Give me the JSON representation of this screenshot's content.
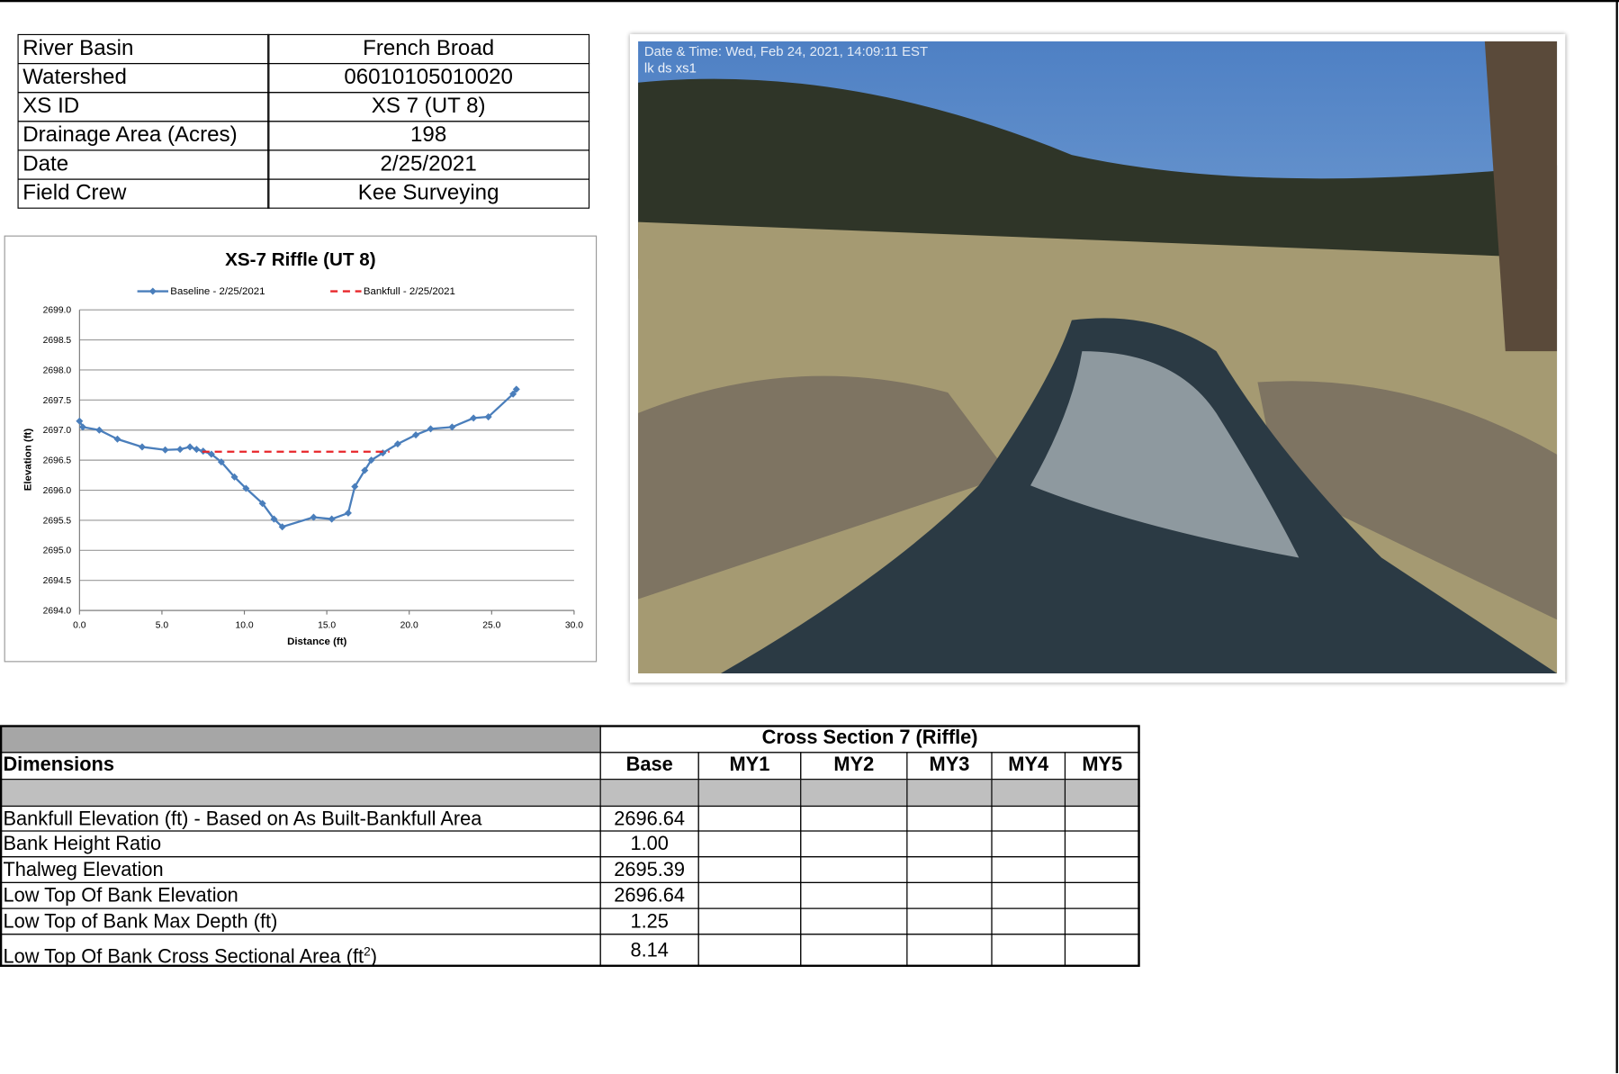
{
  "site_info": {
    "rows": [
      [
        "River Basin",
        "French Broad"
      ],
      [
        "Watershed",
        "06010105010020"
      ],
      [
        "XS ID",
        "XS 7 (UT 8)"
      ],
      [
        "Drainage Area (Acres)",
        "198"
      ],
      [
        "Date",
        "2/25/2021"
      ],
      [
        "Field Crew",
        "Kee Surveying"
      ]
    ]
  },
  "chart_data": {
    "type": "line",
    "title": "XS-7 Riffle (UT 8)",
    "xlabel": "Distance (ft)",
    "ylabel": "Elevation (ft)",
    "legend": "top",
    "grid": true,
    "series": [
      {
        "name": "Baseline - 2/25/2021",
        "color": "#4a7ebb",
        "line_style": "solid",
        "marker": "diamond",
        "x": [
          0,
          0.2,
          1.2,
          2.3,
          3.8,
          5.2,
          6.1,
          6.7,
          7.1,
          7.5,
          8.0,
          8.6,
          9.4,
          10.1,
          11.1,
          11.8,
          12.3,
          14.2,
          15.3,
          16.3,
          16.7,
          17.3,
          17.7,
          18.4,
          19.3,
          20.4,
          21.3,
          22.6,
          23.9,
          24.8,
          26.3,
          26.5
        ],
        "values": [
          2697.15,
          2697.05,
          2697.0,
          2696.85,
          2696.72,
          2696.67,
          2696.68,
          2696.72,
          2696.68,
          2696.65,
          2696.6,
          2696.47,
          2696.22,
          2696.03,
          2695.78,
          2695.52,
          2695.39,
          2695.55,
          2695.52,
          2695.62,
          2696.06,
          2696.33,
          2696.5,
          2696.62,
          2696.77,
          2696.92,
          2697.02,
          2697.05,
          2697.2,
          2697.22,
          2697.6,
          2697.68
        ]
      },
      {
        "name": "Bankfull - 2/25/2021",
        "color": "#e8262a",
        "line_style": "dashed",
        "marker": "none",
        "x": [
          7.45,
          18.8
        ],
        "values": [
          2696.64,
          2696.64
        ]
      }
    ],
    "xlim": [
      0,
      30
    ],
    "xticks": [
      {
        "value": 0,
        "label": "0.0"
      },
      {
        "value": 5,
        "label": "5.0"
      },
      {
        "value": 10,
        "label": "10.0"
      },
      {
        "value": 15,
        "label": "15.0"
      },
      {
        "value": 20,
        "label": "20.0"
      },
      {
        "value": 25,
        "label": "25.0"
      },
      {
        "value": 30,
        "label": "30.0"
      }
    ],
    "ylim": [
      2694,
      2699
    ],
    "yticks": [
      {
        "value": 2694,
        "label": "2694.0"
      },
      {
        "value": 2694.5,
        "label": "2694.5"
      },
      {
        "value": 2695,
        "label": "2695.0"
      },
      {
        "value": 2695.5,
        "label": "2695.5"
      },
      {
        "value": 2696,
        "label": "2696.0"
      },
      {
        "value": 2696.5,
        "label": "2696.5"
      },
      {
        "value": 2697,
        "label": "2697.0"
      },
      {
        "value": 2697.5,
        "label": "2697.5"
      },
      {
        "value": 2698,
        "label": "2698.0"
      },
      {
        "value": 2698.5,
        "label": "2698.5"
      },
      {
        "value": 2699,
        "label": "2699.0"
      }
    ]
  },
  "photo": {
    "timestamp": "Date & Time: Wed, Feb 24, 2021, 14:09:11 EST",
    "caption": "lk ds xs1"
  },
  "dimensions": {
    "group_header": "Cross Section 7 (Riffle)",
    "row_header": "Dimensions",
    "columns": [
      "Base",
      "MY1",
      "MY2",
      "MY3",
      "MY4",
      "MY5"
    ],
    "rows": [
      {
        "label": "Bankfull Elevation (ft) - Based on As Built-Bankfull Area",
        "base": "2696.64"
      },
      {
        "label": "Bank Height Ratio",
        "base": "1.00"
      },
      {
        "label": "Thalweg Elevation",
        "base": "2695.39"
      },
      {
        "label": "Low Top Of Bank Elevation",
        "base": "2696.64"
      },
      {
        "label": "Low Top of Bank Max Depth (ft)",
        "base": "1.25"
      },
      {
        "label": "Low Top Of Bank Cross Sectional Area (ft",
        "sup": "2",
        "label_end": ")",
        "base": "8.14"
      }
    ]
  }
}
